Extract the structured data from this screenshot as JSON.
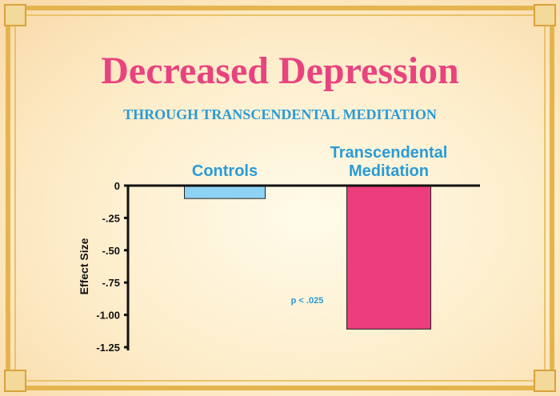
{
  "chart_data": {
    "type": "bar",
    "title": "Decreased Depression",
    "subtitle": "THROUGH TRANSCENDENTAL MEDITATION",
    "y_label": "Effect Size",
    "annotation": "p < .025",
    "categories": [
      "Controls",
      "Transcendental Meditation"
    ],
    "values": [
      -0.1,
      -1.11
    ],
    "colors": [
      "#8fd3f4",
      "#ec3d7c"
    ],
    "ylim": [
      0,
      -1.25
    ],
    "yticks": [
      0,
      {
        "value": -0.25,
        "label": "-.25"
      },
      {
        "value": -0.5,
        "label": "-.50"
      },
      {
        "value": -0.75,
        "label": "-.75"
      },
      {
        "value": -1,
        "label": "-1.00"
      },
      {
        "value": -1.25,
        "label": "-1.25"
      }
    ]
  }
}
